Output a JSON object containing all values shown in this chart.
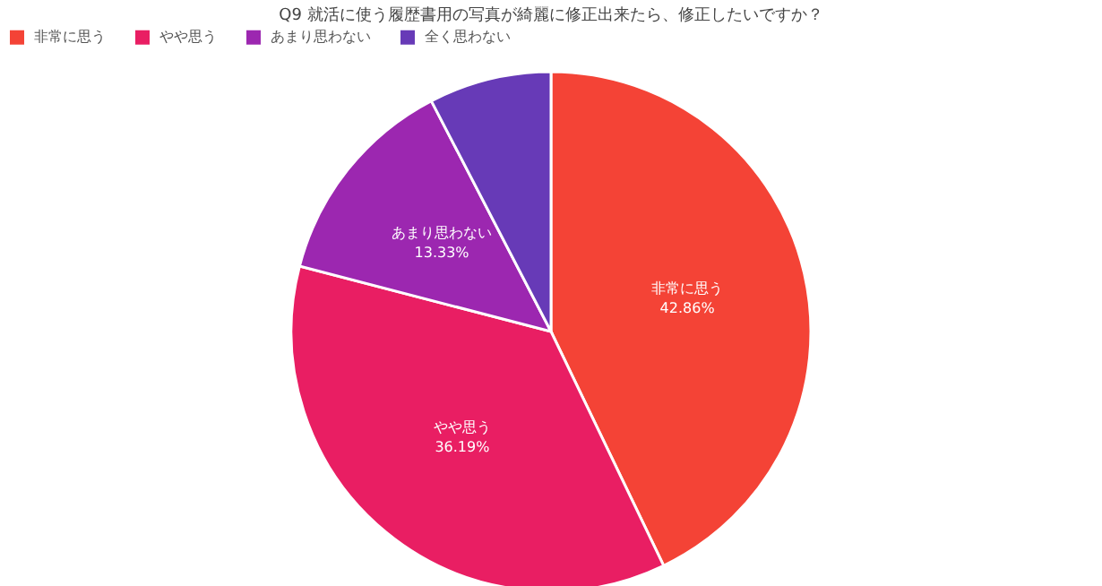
{
  "chart_data": {
    "type": "pie",
    "title": "Q9 就活に使う履歴書用の写真が綺麗に修正出来たら、修正したいですか？",
    "categories": [
      "非常に思う",
      "やや思う",
      "あまり思わない",
      "全く思わない"
    ],
    "values": [
      42.86,
      36.19,
      13.33,
      7.62
    ],
    "colors": [
      "#f44336",
      "#e91e63",
      "#9c27b0",
      "#673ab7"
    ],
    "value_labels": [
      "42.86%",
      "36.19%",
      "13.33%",
      null
    ],
    "legend": "top"
  }
}
